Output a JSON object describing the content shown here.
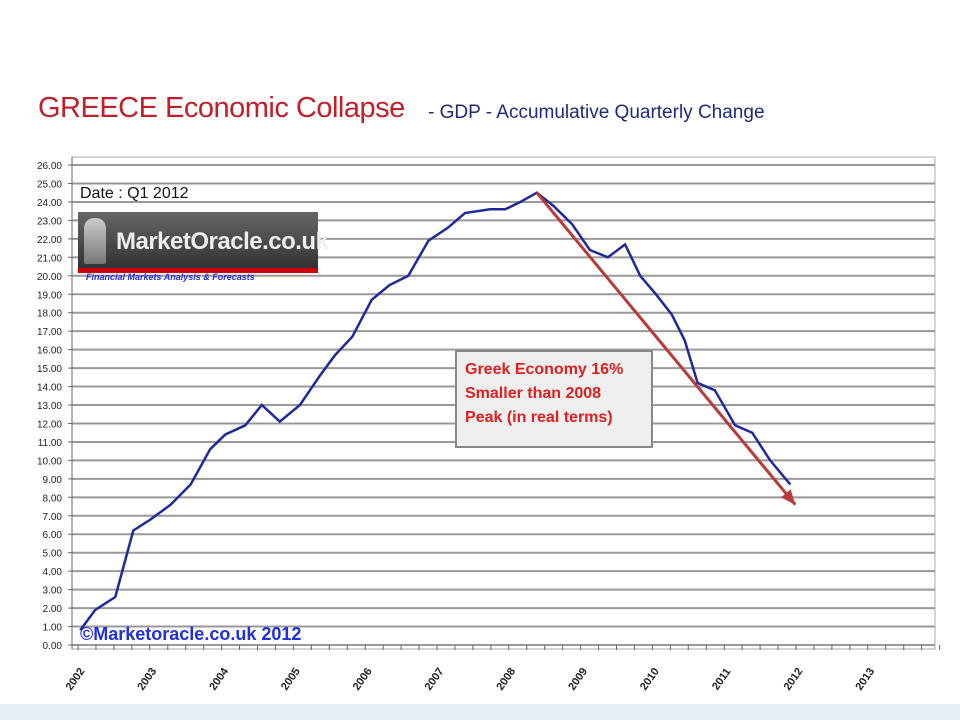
{
  "chart_data": {
    "type": "line",
    "title": "GREECE Economic Collapse",
    "subtitle": "- GDP - Accumulative Quarterly Change",
    "xlabel": "",
    "ylabel": "",
    "ylim": [
      0,
      26
    ],
    "xlim": [
      2002,
      2014
    ],
    "yticks": [
      "0.00",
      "1.00",
      "2.00",
      "3.00",
      "4.00",
      "5.00",
      "6.00",
      "7.00",
      "8.00",
      "9.00",
      "10.00",
      "11.00",
      "12.00",
      "13.00",
      "14.00",
      "15.00",
      "16.00",
      "17.00",
      "18.00",
      "19.00",
      "20.00",
      "21.00",
      "22.00",
      "23.00",
      "24.00",
      "25.00",
      "26.00"
    ],
    "xticks": [
      "2002",
      "2003",
      "2004",
      "2005",
      "2006",
      "2007",
      "2008",
      "2009",
      "2010",
      "2011",
      "2012",
      "2013"
    ],
    "grid": true,
    "series": [
      {
        "name": "GDP accumulative quarterly change",
        "color": "#1f2a9a",
        "x": [
          2002.03,
          2002.24,
          2002.52,
          2002.77,
          2003.01,
          2003.29,
          2003.57,
          2003.84,
          2004.05,
          2004.33,
          2004.56,
          2004.81,
          2005.09,
          2005.37,
          2005.58,
          2005.82,
          2006.09,
          2006.34,
          2006.6,
          2006.88,
          2007.15,
          2007.39,
          2007.74,
          2007.95,
          2008.16,
          2008.39,
          2008.62,
          2008.88,
          2009.13,
          2009.38,
          2009.62,
          2009.83,
          2010.05,
          2010.27,
          2010.45,
          2010.63,
          2010.87,
          2011.15,
          2011.39,
          2011.64,
          2011.92
        ],
        "y": [
          0.8,
          1.9,
          2.6,
          6.2,
          6.8,
          7.6,
          8.7,
          10.6,
          11.4,
          11.9,
          13.0,
          12.1,
          13.0,
          14.6,
          15.7,
          16.7,
          18.7,
          19.5,
          20.0,
          21.9,
          22.6,
          23.4,
          23.6,
          23.6,
          24.0,
          24.5,
          23.8,
          22.8,
          21.4,
          21.0,
          21.7,
          20.0,
          19.0,
          17.9,
          16.5,
          14.2,
          13.8,
          11.9,
          11.5,
          10.0,
          8.7
        ]
      }
    ],
    "annotations": {
      "arrow": {
        "from": [
          2008.39,
          24.5
        ],
        "to": [
          2011.99,
          7.6
        ],
        "color": "#b83a3a"
      },
      "date": "Date : Q1 2012",
      "note": [
        "Greek Economy 16%",
        "Smaller than 2008",
        "Peak (in real terms)"
      ],
      "logo": "MarketOracle.co.uk",
      "tagline": "Financial Markets Analysis & Forecasts",
      "copyright": "©Marketoracle.co.uk 2012"
    }
  }
}
